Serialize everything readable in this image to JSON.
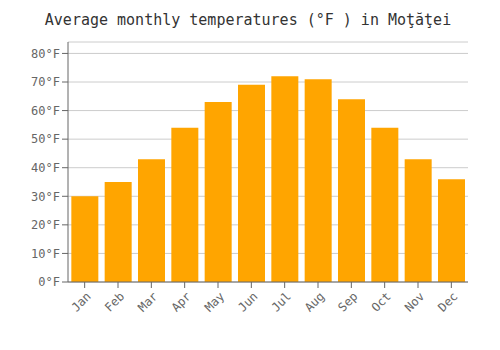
{
  "chart_data": {
    "type": "bar",
    "title": "Average monthly temperatures (°F ) in Moţăţei",
    "categories": [
      "Jan",
      "Feb",
      "Mar",
      "Apr",
      "May",
      "Jun",
      "Jul",
      "Aug",
      "Sep",
      "Oct",
      "Nov",
      "Dec"
    ],
    "values": [
      30,
      35,
      43,
      54,
      63,
      69,
      72,
      71,
      64,
      54,
      43,
      36
    ],
    "color": "#FFA500",
    "ylim": [
      0,
      84
    ],
    "yticks": [
      {
        "value": 0,
        "label": "0°F"
      },
      {
        "value": 10,
        "label": "10°F"
      },
      {
        "value": 20,
        "label": "20°F"
      },
      {
        "value": 30,
        "label": "30°F"
      },
      {
        "value": 40,
        "label": "40°F"
      },
      {
        "value": 50,
        "label": "50°F"
      },
      {
        "value": 60,
        "label": "60°F"
      },
      {
        "value": 70,
        "label": "70°F"
      },
      {
        "value": 80,
        "label": "80°F"
      }
    ],
    "grid": true
  }
}
